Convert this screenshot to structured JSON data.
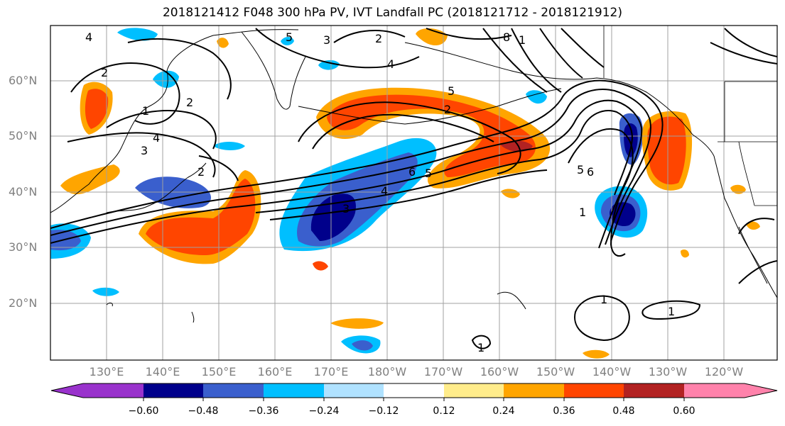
{
  "title": "2018121412 F048 300 hPa PV, IVT Landfall PC (2018121712 - 2018121912)",
  "lat_labels": [
    "60°N",
    "50°N",
    "40°N",
    "30°N",
    "20°N"
  ],
  "lon_labels": [
    "130°E",
    "140°E",
    "150°E",
    "160°E",
    "170°E",
    "180°W",
    "170°W",
    "160°W",
    "150°W",
    "140°W",
    "130°W",
    "120°W"
  ],
  "colorbar": {
    "ticks": [
      "−0.60",
      "−0.48",
      "−0.36",
      "−0.24",
      "−0.12",
      "0.12",
      "0.24",
      "0.36",
      "0.48",
      "0.60"
    ],
    "colors": [
      "#9932cc",
      "#00008b",
      "#3a5fcd",
      "#00bfff",
      "#b0e2ff",
      "#ffffff",
      "#ffec8b",
      "#ffa500",
      "#ff4500",
      "#b22222",
      "#ff82ab"
    ]
  },
  "contour_labels": [
    "4",
    "5",
    "3",
    "2",
    "4",
    "8",
    "1",
    "5",
    "2",
    "2",
    "1",
    "4",
    "3",
    "2",
    "6",
    "5",
    "4",
    "3",
    "2",
    "5",
    "6",
    "1",
    "1",
    "1",
    "1"
  ]
}
